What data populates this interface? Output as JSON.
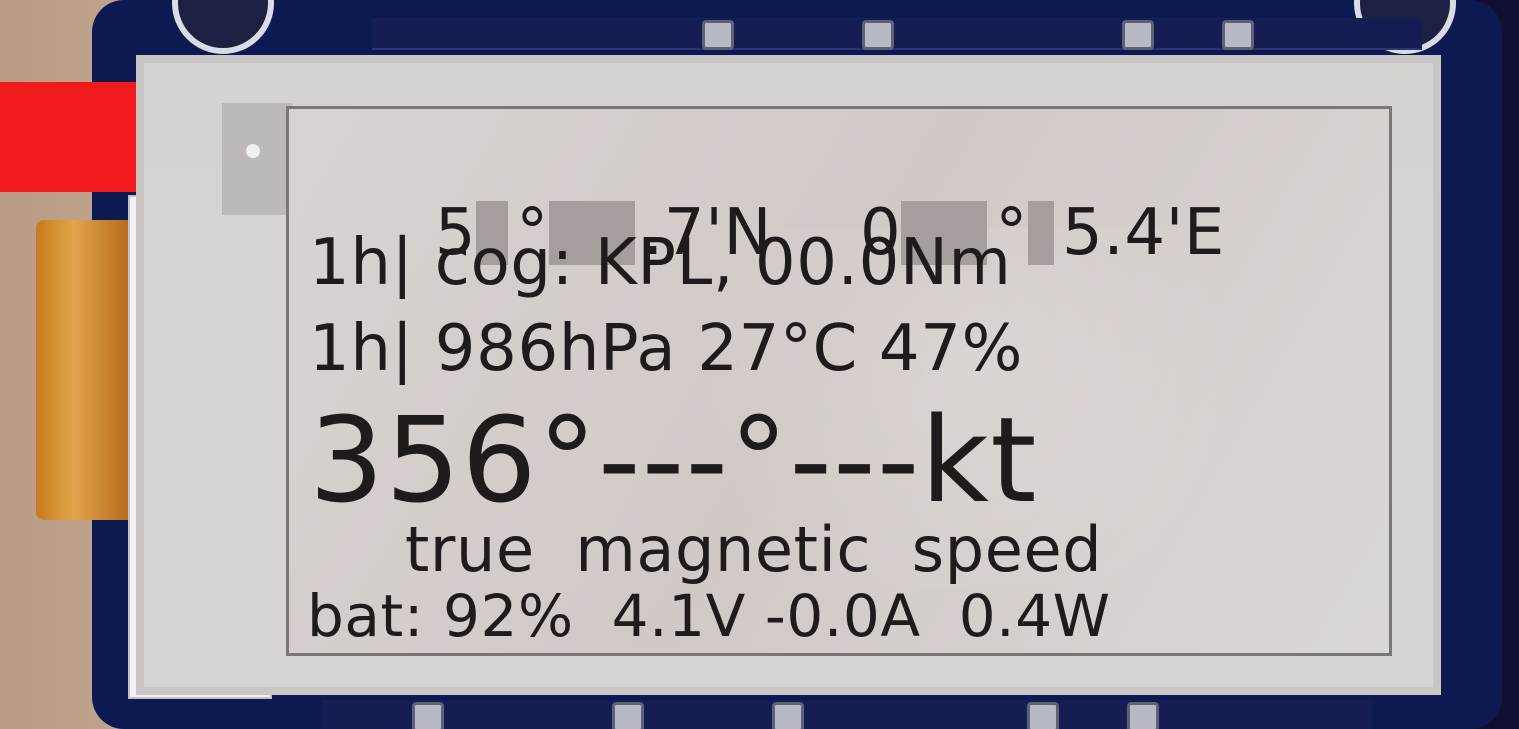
{
  "display": {
    "coordinates": {
      "lat_prefix": "5",
      "lat_suffix": ".7'N",
      "lon_prefix": "0",
      "lon_suffix": "5.4'E"
    },
    "course_line": "1h| cog: KPL, 00.0Nm",
    "weather_line": "1h| 986hPa 27°C 47%",
    "heading_line": "356°---°---kt",
    "labels_line": "true  magnetic  speed",
    "battery_line": "bat: 92%  4.1V -0.0A  0.4W"
  }
}
